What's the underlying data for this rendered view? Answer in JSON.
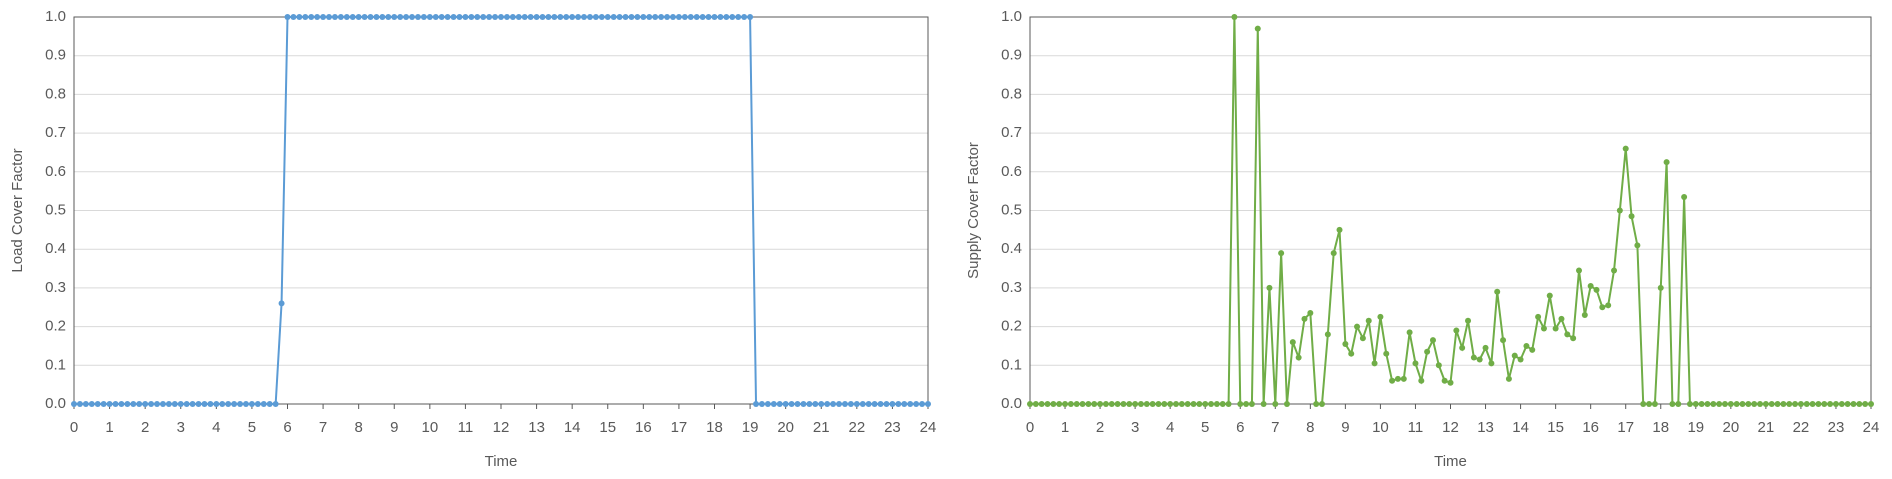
{
  "chart_data": [
    {
      "type": "line",
      "xlabel": "Time",
      "ylabel": "Load Cover Factor",
      "x": [
        0,
        0.167,
        0.333,
        0.5,
        0.667,
        0.833,
        1,
        1.167,
        1.333,
        1.5,
        1.667,
        1.833,
        2,
        2.167,
        2.333,
        2.5,
        2.667,
        2.833,
        3,
        3.167,
        3.333,
        3.5,
        3.667,
        3.833,
        4,
        4.167,
        4.333,
        4.5,
        4.667,
        4.833,
        5,
        5.167,
        5.333,
        5.5,
        5.667,
        5.833,
        6,
        6.167,
        6.333,
        6.5,
        6.667,
        6.833,
        7,
        7.167,
        7.333,
        7.5,
        7.667,
        7.833,
        8,
        8.167,
        8.333,
        8.5,
        8.667,
        8.833,
        9,
        9.167,
        9.333,
        9.5,
        9.667,
        9.833,
        10,
        10.167,
        10.333,
        10.5,
        10.667,
        10.833,
        11,
        11.167,
        11.333,
        11.5,
        11.667,
        11.833,
        12,
        12.167,
        12.333,
        12.5,
        12.667,
        12.833,
        13,
        13.167,
        13.333,
        13.5,
        13.667,
        13.833,
        14,
        14.167,
        14.333,
        14.5,
        14.667,
        14.833,
        15,
        15.167,
        15.333,
        15.5,
        15.667,
        15.833,
        16,
        16.167,
        16.333,
        16.5,
        16.667,
        16.833,
        17,
        17.167,
        17.333,
        17.5,
        17.667,
        17.833,
        18,
        18.167,
        18.333,
        18.5,
        18.667,
        18.833,
        19,
        19.167,
        19.333,
        19.5,
        19.667,
        19.833,
        20,
        20.167,
        20.333,
        20.5,
        20.667,
        20.833,
        21,
        21.167,
        21.333,
        21.5,
        21.667,
        21.833,
        22,
        22.167,
        22.333,
        22.5,
        22.667,
        22.833,
        23,
        23.167,
        23.333,
        23.5,
        23.667,
        23.833,
        24
      ],
      "series": [
        {
          "name": "Load Cover Factor",
          "color": "#5b9bd5",
          "values": [
            0,
            0,
            0,
            0,
            0,
            0,
            0,
            0,
            0,
            0,
            0,
            0,
            0,
            0,
            0,
            0,
            0,
            0,
            0,
            0,
            0,
            0,
            0,
            0,
            0,
            0,
            0,
            0,
            0,
            0,
            0,
            0,
            0,
            0,
            0,
            0.26,
            1,
            1,
            1,
            1,
            1,
            1,
            1,
            1,
            1,
            1,
            1,
            1,
            1,
            1,
            1,
            1,
            1,
            1,
            1,
            1,
            1,
            1,
            1,
            1,
            1,
            1,
            1,
            1,
            1,
            1,
            1,
            1,
            1,
            1,
            1,
            1,
            1,
            1,
            1,
            1,
            1,
            1,
            1,
            1,
            1,
            1,
            1,
            1,
            1,
            1,
            1,
            1,
            1,
            1,
            1,
            1,
            1,
            1,
            1,
            1,
            1,
            1,
            1,
            1,
            1,
            1,
            1,
            1,
            1,
            1,
            1,
            1,
            1,
            1,
            1,
            1,
            1,
            1,
            1,
            0,
            0,
            0,
            0,
            0,
            0,
            0,
            0,
            0,
            0,
            0,
            0,
            0,
            0,
            0,
            0,
            0,
            0,
            0,
            0,
            0,
            0,
            0,
            0,
            0,
            0,
            0,
            0,
            0,
            0
          ]
        }
      ],
      "xlim": [
        0,
        24
      ],
      "xticks": [
        0,
        1,
        2,
        3,
        4,
        5,
        6,
        7,
        8,
        9,
        10,
        11,
        12,
        13,
        14,
        15,
        16,
        17,
        18,
        19,
        20,
        21,
        22,
        23,
        24
      ],
      "ylim": [
        0,
        1
      ],
      "yticks": [
        {
          "value": 0,
          "label": "0.0"
        },
        0.1,
        0.2,
        0.3,
        0.4,
        0.5,
        0.6,
        0.7,
        0.8,
        0.9,
        {
          "value": 1,
          "label": "1.0"
        }
      ],
      "grid": true
    },
    {
      "type": "line",
      "xlabel": "Time",
      "ylabel": "Supply Cover Factor",
      "x": [
        0,
        0.167,
        0.333,
        0.5,
        0.667,
        0.833,
        1,
        1.167,
        1.333,
        1.5,
        1.667,
        1.833,
        2,
        2.167,
        2.333,
        2.5,
        2.667,
        2.833,
        3,
        3.167,
        3.333,
        3.5,
        3.667,
        3.833,
        4,
        4.167,
        4.333,
        4.5,
        4.667,
        4.833,
        5,
        5.167,
        5.333,
        5.5,
        5.667,
        5.833,
        6,
        6.167,
        6.333,
        6.5,
        6.667,
        6.833,
        7,
        7.167,
        7.333,
        7.5,
        7.667,
        7.833,
        8,
        8.167,
        8.333,
        8.5,
        8.667,
        8.833,
        9,
        9.167,
        9.333,
        9.5,
        9.667,
        9.833,
        10,
        10.167,
        10.333,
        10.5,
        10.667,
        10.833,
        11,
        11.167,
        11.333,
        11.5,
        11.667,
        11.833,
        12,
        12.167,
        12.333,
        12.5,
        12.667,
        12.833,
        13,
        13.167,
        13.333,
        13.5,
        13.667,
        13.833,
        14,
        14.167,
        14.333,
        14.5,
        14.667,
        14.833,
        15,
        15.167,
        15.333,
        15.5,
        15.667,
        15.833,
        16,
        16.167,
        16.333,
        16.5,
        16.667,
        16.833,
        17,
        17.167,
        17.333,
        17.5,
        17.667,
        17.833,
        18,
        18.167,
        18.333,
        18.5,
        18.667,
        18.833,
        19,
        19.167,
        19.333,
        19.5,
        19.667,
        19.833,
        20,
        20.167,
        20.333,
        20.5,
        20.667,
        20.833,
        21,
        21.167,
        21.333,
        21.5,
        21.667,
        21.833,
        22,
        22.167,
        22.333,
        22.5,
        22.667,
        22.833,
        23,
        23.167,
        23.333,
        23.5,
        23.667,
        23.833,
        24
      ],
      "series": [
        {
          "name": "Supply Cover Factor",
          "color": "#70ad47",
          "values": [
            0,
            0,
            0,
            0,
            0,
            0,
            0,
            0,
            0,
            0,
            0,
            0,
            0,
            0,
            0,
            0,
            0,
            0,
            0,
            0,
            0,
            0,
            0,
            0,
            0,
            0,
            0,
            0,
            0,
            0,
            0,
            0,
            0,
            0,
            0,
            1,
            0,
            0,
            0,
            0.97,
            0,
            0.3,
            0,
            0.39,
            0,
            0.16,
            0.12,
            0.22,
            0.235,
            0,
            0,
            0.18,
            0.39,
            0.45,
            0.155,
            0.13,
            0.2,
            0.17,
            0.215,
            0.105,
            0.225,
            0.13,
            0.06,
            0.065,
            0.065,
            0.185,
            0.105,
            0.06,
            0.135,
            0.165,
            0.1,
            0.06,
            0.055,
            0.19,
            0.145,
            0.215,
            0.12,
            0.115,
            0.145,
            0.105,
            0.29,
            0.165,
            0.065,
            0.125,
            0.115,
            0.15,
            0.14,
            0.225,
            0.195,
            0.28,
            0.195,
            0.22,
            0.18,
            0.17,
            0.345,
            0.23,
            0.305,
            0.295,
            0.25,
            0.255,
            0.345,
            0.5,
            0.66,
            0.485,
            0.41,
            0,
            0,
            0,
            0.3,
            0.625,
            0,
            0,
            0.535,
            0,
            0,
            0,
            0,
            0,
            0,
            0,
            0,
            0,
            0,
            0,
            0,
            0,
            0,
            0,
            0,
            0,
            0,
            0,
            0,
            0,
            0,
            0,
            0,
            0,
            0,
            0,
            0,
            0,
            0,
            0,
            0
          ]
        }
      ],
      "xlim": [
        0,
        24
      ],
      "xticks": [
        0,
        1,
        2,
        3,
        4,
        5,
        6,
        7,
        8,
        9,
        10,
        11,
        12,
        13,
        14,
        15,
        16,
        17,
        18,
        19,
        20,
        21,
        22,
        23,
        24
      ],
      "ylim": [
        0,
        1
      ],
      "yticks": [
        {
          "value": 0,
          "label": "0.0"
        },
        0.1,
        0.2,
        0.3,
        0.4,
        0.5,
        0.6,
        0.7,
        0.8,
        0.9,
        {
          "value": 1,
          "label": "1.0"
        }
      ],
      "grid": true
    }
  ]
}
